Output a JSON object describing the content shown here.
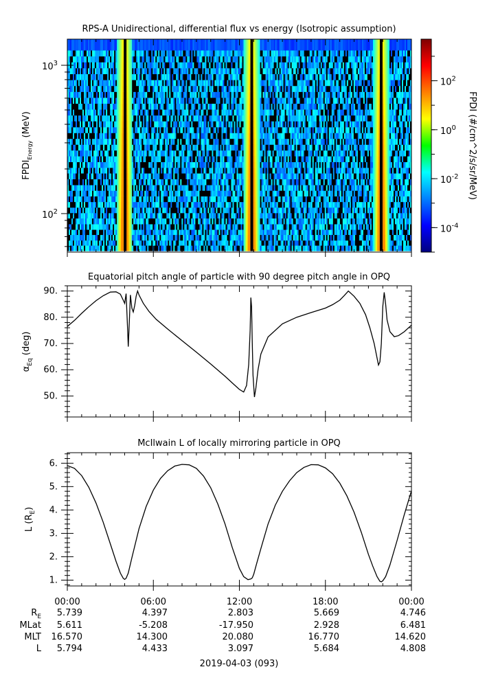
{
  "chart_data": [
    {
      "type": "heatmap",
      "title": "RPS-A Unidirectional, differential flux vs energy (Isotropic assumption)",
      "ylabel_main": "FPDI",
      "ylabel_sub": "Energy",
      "ylabel_unit": " (MeV)",
      "yscale": "log",
      "ylim": [
        55,
        1500
      ],
      "yticks": [
        {
          "value": 100,
          "base": "10",
          "exp": "2"
        },
        {
          "value": 1000,
          "base": "10",
          "exp": "3"
        }
      ],
      "xlim": [
        0,
        24
      ],
      "bands": [
        {
          "lo": 56,
          "hi": 61
        },
        {
          "lo": 61,
          "hi": 66
        },
        {
          "lo": 66,
          "hi": 72
        },
        {
          "lo": 72,
          "hi": 78
        },
        {
          "lo": 78,
          "hi": 85
        },
        {
          "lo": 85,
          "hi": 93
        },
        {
          "lo": 93,
          "hi": 101
        },
        {
          "lo": 101,
          "hi": 110
        },
        {
          "lo": 110,
          "hi": 120
        },
        {
          "lo": 120,
          "hi": 131
        },
        {
          "lo": 131,
          "hi": 143
        },
        {
          "lo": 143,
          "hi": 156
        },
        {
          "lo": 156,
          "hi": 171
        },
        {
          "lo": 171,
          "hi": 187
        },
        {
          "lo": 187,
          "hi": 204
        },
        {
          "lo": 204,
          "hi": 223
        },
        {
          "lo": 223,
          "hi": 244
        },
        {
          "lo": 244,
          "hi": 267
        },
        {
          "lo": 267,
          "hi": 292
        },
        {
          "lo": 292,
          "hi": 320
        },
        {
          "lo": 320,
          "hi": 350
        },
        {
          "lo": 350,
          "hi": 383
        },
        {
          "lo": 383,
          "hi": 420
        },
        {
          "lo": 420,
          "hi": 460
        },
        {
          "lo": 460,
          "hi": 504
        },
        {
          "lo": 504,
          "hi": 552
        },
        {
          "lo": 552,
          "hi": 605
        },
        {
          "lo": 605,
          "hi": 663
        },
        {
          "lo": 663,
          "hi": 727
        },
        {
          "lo": 727,
          "hi": 797
        },
        {
          "lo": 797,
          "hi": 874
        },
        {
          "lo": 874,
          "hi": 958
        },
        {
          "lo": 958,
          "hi": 1050
        },
        {
          "lo": 1050,
          "hi": 1151
        },
        {
          "lo": 1151,
          "hi": 1262
        },
        {
          "lo": 1262,
          "hi": 1500
        }
      ],
      "hot_regions": [
        {
          "center": 4.0,
          "halfwidth": 0.55
        },
        {
          "center": 12.85,
          "halfwidth": 0.55
        },
        {
          "center": 21.9,
          "halfwidth": 0.55
        }
      ],
      "colorbar": {
        "label": "FPDI (#/cm^2/s/sr/MeV)",
        "scale": "log",
        "range": [
          1e-05,
          5000
        ],
        "ticks": [
          {
            "value": 0.0001,
            "base": "10",
            "exp": "-4"
          },
          {
            "value": 0.01,
            "base": "10",
            "exp": "-2"
          },
          {
            "value": 1,
            "base": "10",
            "exp": "0"
          },
          {
            "value": 100,
            "base": "10",
            "exp": "2"
          }
        ]
      }
    },
    {
      "type": "line",
      "title": "Equatorial pitch angle of particle with 90 degree pitch angle in OPQ",
      "ylabel_main": "α",
      "ylabel_sub": "Eq",
      "ylabel_unit": " (deg)",
      "ylim": [
        42,
        92
      ],
      "yticks": [
        50,
        60,
        70,
        80,
        90
      ],
      "xlim": [
        0,
        24
      ],
      "series": [
        {
          "x": [
            0,
            0.5,
            1,
            1.5,
            2,
            2.5,
            3,
            3.4,
            3.7,
            3.9,
            4.0,
            4.1,
            4.2,
            4.25,
            4.3,
            4.4,
            4.5,
            4.6,
            4.7,
            4.8,
            4.9,
            5.0,
            5.3,
            5.7,
            6.2,
            7,
            8,
            9,
            10,
            11,
            11.5,
            12,
            12.3,
            12.5,
            12.65,
            12.75,
            12.8,
            12.85,
            12.9,
            12.95,
            13.05,
            13.15,
            13.3,
            13.5,
            14,
            15,
            16,
            17,
            18,
            18.5,
            19,
            19.3,
            19.6,
            20,
            20.4,
            20.8,
            21.1,
            21.4,
            21.6,
            21.7,
            21.8,
            21.9,
            22.0,
            22.1,
            22.2,
            22.3,
            22.5,
            22.8,
            23.1,
            23.5,
            24
          ],
          "y": [
            76.5,
            78.8,
            81.5,
            84,
            86.3,
            88.2,
            89.6,
            89.7,
            88.8,
            86.5,
            85.3,
            89,
            76,
            68.8,
            75,
            88.5,
            83.5,
            82,
            84.5,
            88,
            90,
            88.5,
            85.3,
            82.2,
            79.2,
            75.5,
            71.1,
            66.7,
            62.2,
            57.5,
            55,
            52.5,
            51.5,
            54,
            62,
            75,
            87.5,
            84,
            70,
            58,
            49.6,
            53,
            60,
            66,
            72.5,
            77.5,
            80,
            81.8,
            83.5,
            84.8,
            86.5,
            88.2,
            90,
            88,
            85.3,
            81,
            76,
            70,
            64.5,
            61.8,
            63,
            70,
            84,
            89.5,
            85,
            79,
            74.5,
            72.6,
            73,
            74.5,
            77
          ]
        }
      ]
    },
    {
      "type": "line",
      "title": "McIlwain L of locally mirroring particle in OPQ",
      "ylabel_main": "L (R",
      "ylabel_sub": "E",
      "ylabel_unit": ")",
      "ylim": [
        0.75,
        6.45
      ],
      "yticks": [
        1,
        2,
        3,
        4,
        5,
        6
      ],
      "xlim": [
        0,
        24
      ],
      "series": [
        {
          "x": [
            0,
            0.5,
            1,
            1.5,
            2,
            2.5,
            3,
            3.4,
            3.7,
            3.9,
            4.0,
            4.1,
            4.25,
            4.5,
            5,
            5.5,
            6,
            6.5,
            7,
            7.5,
            8,
            8.5,
            9,
            9.5,
            10,
            10.5,
            11,
            11.5,
            12,
            12.3,
            12.6,
            12.8,
            12.9,
            13.0,
            13.2,
            13.5,
            14,
            14.5,
            15,
            15.5,
            16,
            16.5,
            17,
            17.5,
            18,
            18.5,
            19,
            19.5,
            20,
            20.5,
            21,
            21.3,
            21.6,
            21.8,
            21.9,
            22.0,
            22.2,
            22.5,
            23,
            23.5,
            24
          ],
          "y": [
            5.9,
            5.78,
            5.47,
            4.97,
            4.3,
            3.48,
            2.55,
            1.8,
            1.3,
            1.08,
            1.03,
            1.08,
            1.3,
            1.95,
            3.2,
            4.15,
            4.85,
            5.35,
            5.68,
            5.88,
            5.95,
            5.93,
            5.78,
            5.45,
            4.95,
            4.25,
            3.4,
            2.4,
            1.5,
            1.15,
            1.02,
            1.05,
            1.1,
            1.25,
            1.7,
            2.35,
            3.4,
            4.2,
            4.8,
            5.25,
            5.6,
            5.82,
            5.94,
            5.93,
            5.8,
            5.55,
            5.15,
            4.6,
            3.9,
            3.05,
            2.1,
            1.6,
            1.15,
            0.95,
            0.93,
            0.97,
            1.15,
            1.65,
            2.7,
            3.8,
            4.82
          ]
        }
      ]
    }
  ],
  "time_axis": {
    "tick_labels": [
      "00:00",
      "06:00",
      "12:00",
      "18:00",
      "00:00"
    ],
    "tick_hours": [
      0,
      6,
      12,
      18,
      24
    ],
    "minor_step_hours": 1,
    "date_label": "2019-04-03 (093)"
  },
  "ephemeris": {
    "rows": [
      {
        "label": "R",
        "sub": "E",
        "values": [
          "5.739",
          "4.397",
          "2.803",
          "5.669",
          "4.746"
        ]
      },
      {
        "label": "MLat",
        "sub": "",
        "values": [
          "5.611",
          "-5.208",
          "-17.950",
          "2.928",
          "6.481"
        ]
      },
      {
        "label": "MLT",
        "sub": "",
        "values": [
          "16.570",
          "14.300",
          "20.080",
          "16.770",
          "14.620"
        ]
      },
      {
        "label": "L",
        "sub": "",
        "values": [
          "5.794",
          "4.433",
          "3.097",
          "5.684",
          "4.808"
        ]
      }
    ]
  }
}
